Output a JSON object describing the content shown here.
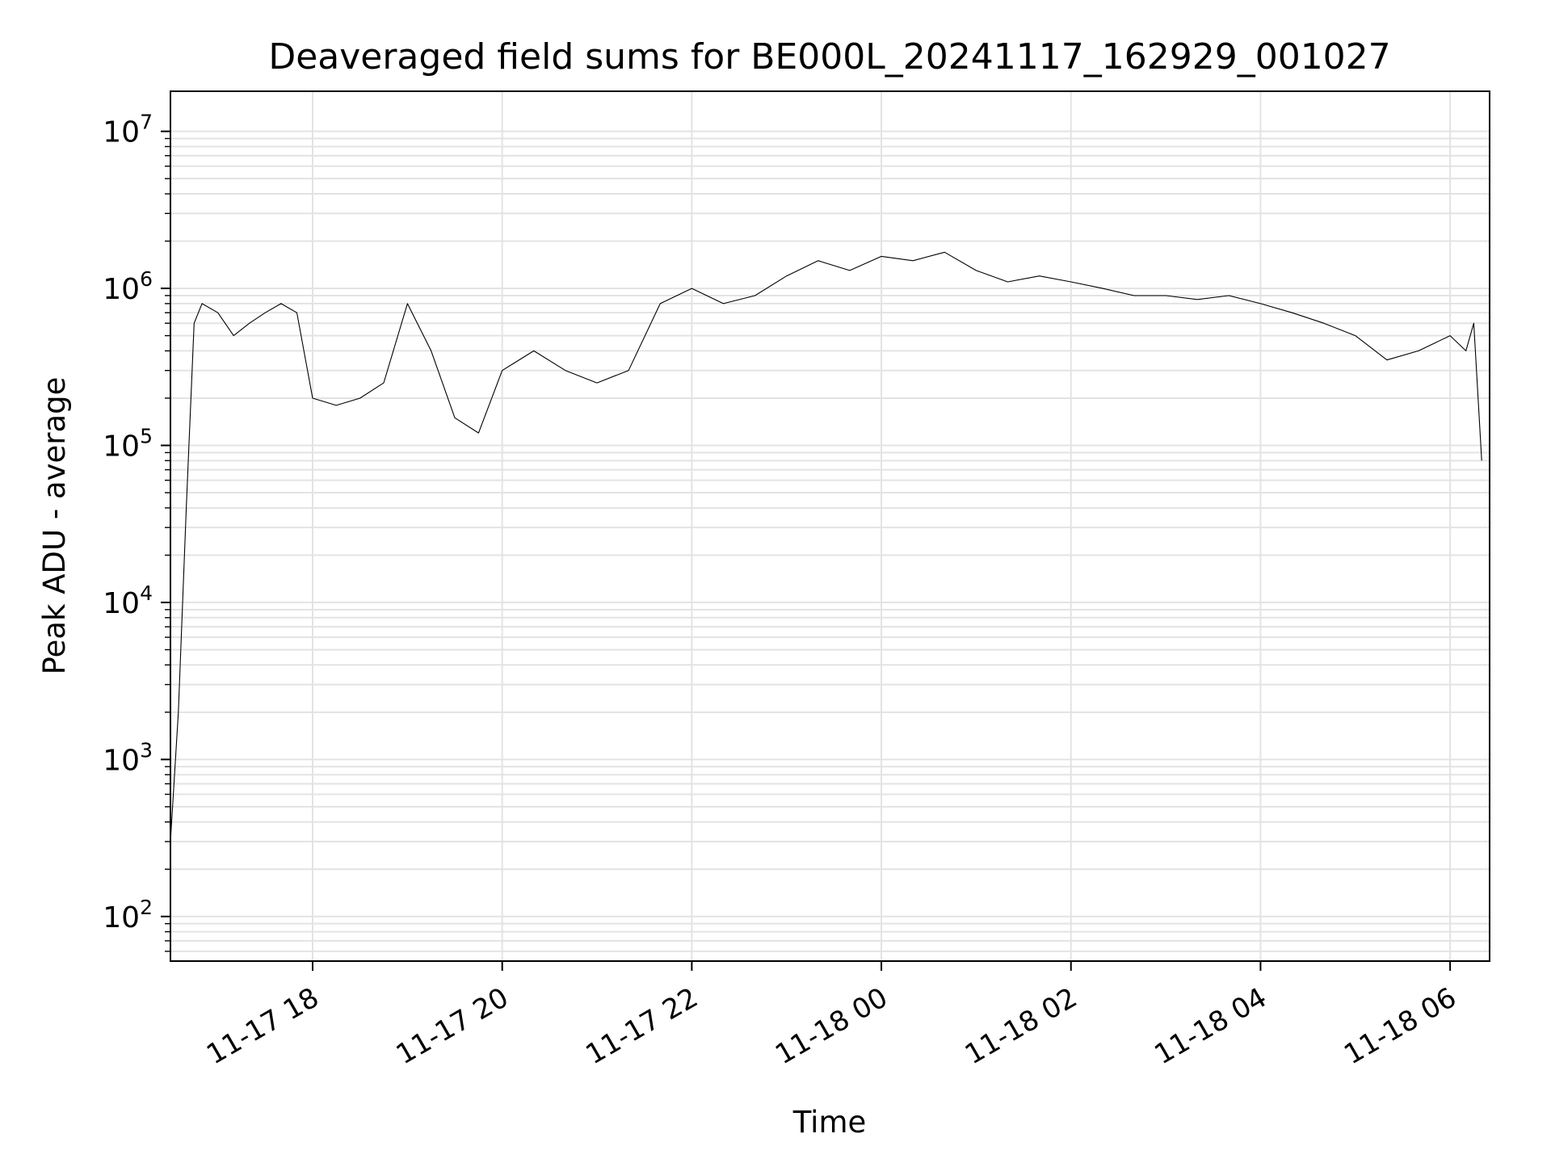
{
  "chart_data": {
    "type": "line",
    "title": "Deaveraged field sums for BE000L_20241117_162929_001027",
    "xlabel": "Time",
    "ylabel": "Peak ADU - average",
    "yscale": "log",
    "ylim": [
      52,
      18000000
    ],
    "xlim": [
      "2024-11-17 16:30",
      "2024-11-18 06:25"
    ],
    "grid": "on (major and minor, light gray)",
    "line_color": "#000000",
    "x_ticks": [
      {
        "t": "2024-11-17 18:00",
        "label": "11-17 18"
      },
      {
        "t": "2024-11-17 20:00",
        "label": "11-17 20"
      },
      {
        "t": "2024-11-17 22:00",
        "label": "11-17 22"
      },
      {
        "t": "2024-11-18 00:00",
        "label": "11-18 00"
      },
      {
        "t": "2024-11-18 02:00",
        "label": "11-18 02"
      },
      {
        "t": "2024-11-18 04:00",
        "label": "11-18 04"
      },
      {
        "t": "2024-11-18 06:00",
        "label": "11-18 06"
      }
    ],
    "y_ticks": [
      {
        "value": 100,
        "base": "10",
        "exp": "2"
      },
      {
        "value": 1000,
        "base": "10",
        "exp": "3"
      },
      {
        "value": 10000,
        "base": "10",
        "exp": "4"
      },
      {
        "value": 100000,
        "base": "10",
        "exp": "5"
      },
      {
        "value": 1000000,
        "base": "10",
        "exp": "6"
      },
      {
        "value": 10000000,
        "base": "10",
        "exp": "7"
      }
    ],
    "series": [
      {
        "x": [
          "2024-11-17 16:30",
          "2024-11-17 16:35",
          "2024-11-17 16:40",
          "2024-11-17 16:45",
          "2024-11-17 16:50",
          "2024-11-17 17:00",
          "2024-11-17 17:10",
          "2024-11-17 17:20",
          "2024-11-17 17:30",
          "2024-11-17 17:40",
          "2024-11-17 17:50",
          "2024-11-17 18:00",
          "2024-11-17 18:15",
          "2024-11-17 18:30",
          "2024-11-17 18:45",
          "2024-11-17 19:00",
          "2024-11-17 19:15",
          "2024-11-17 19:30",
          "2024-11-17 19:45",
          "2024-11-17 20:00",
          "2024-11-17 20:20",
          "2024-11-17 20:40",
          "2024-11-17 21:00",
          "2024-11-17 21:20",
          "2024-11-17 21:40",
          "2024-11-17 22:00",
          "2024-11-17 22:20",
          "2024-11-17 22:40",
          "2024-11-17 23:00",
          "2024-11-17 23:20",
          "2024-11-17 23:40",
          "2024-11-18 00:00",
          "2024-11-18 00:20",
          "2024-11-18 00:40",
          "2024-11-18 01:00",
          "2024-11-18 01:20",
          "2024-11-18 01:40",
          "2024-11-18 02:00",
          "2024-11-18 02:20",
          "2024-11-18 02:40",
          "2024-11-18 03:00",
          "2024-11-18 03:20",
          "2024-11-18 03:40",
          "2024-11-18 04:00",
          "2024-11-18 04:20",
          "2024-11-18 04:40",
          "2024-11-18 05:00",
          "2024-11-18 05:20",
          "2024-11-18 05:40",
          "2024-11-18 06:00",
          "2024-11-18 06:10",
          "2024-11-18 06:15",
          "2024-11-18 06:20"
        ],
        "y": [
          300,
          2000,
          40000,
          600000,
          800000,
          700000,
          500000,
          600000,
          700000,
          800000,
          700000,
          200000,
          180000,
          200000,
          250000,
          800000,
          400000,
          150000,
          120000,
          300000,
          400000,
          300000,
          250000,
          300000,
          800000,
          1000000,
          800000,
          900000,
          1200000,
          1500000,
          1300000,
          1600000,
          1500000,
          1700000,
          1300000,
          1100000,
          1200000,
          1100000,
          1000000,
          900000,
          900000,
          850000,
          900000,
          800000,
          700000,
          600000,
          500000,
          350000,
          400000,
          500000,
          400000,
          600000,
          80000
        ]
      }
    ]
  }
}
